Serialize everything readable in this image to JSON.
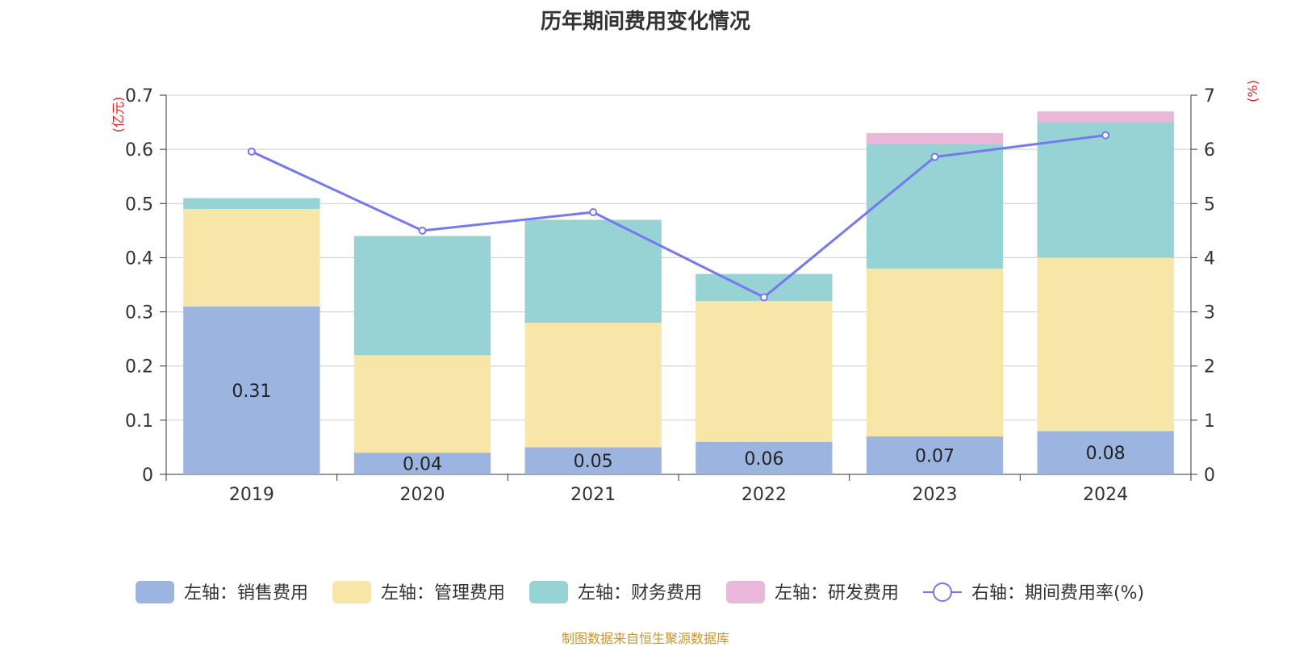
{
  "title": "历年期间费用变化情况",
  "source": "制图数据来自恒生聚源数据库",
  "chart_data": {
    "type": "bar",
    "stacked": true,
    "categories": [
      "2019",
      "2020",
      "2021",
      "2022",
      "2023",
      "2024"
    ],
    "left_axis": {
      "unit_label": "(亿元)",
      "ylim": [
        0,
        0.7
      ],
      "ticks": [
        "0",
        "0.1",
        "0.2",
        "0.3",
        "0.4",
        "0.5",
        "0.6",
        "0.7"
      ]
    },
    "right_axis": {
      "unit_label": "(%)",
      "ylim": [
        0,
        7
      ],
      "ticks": [
        "0",
        "1",
        "2",
        "3",
        "4",
        "5",
        "6",
        "7"
      ]
    },
    "series": [
      {
        "name": "左轴：销售费用",
        "axis": "left",
        "color": "#9bb5e0",
        "values": [
          0.31,
          0.04,
          0.05,
          0.06,
          0.07,
          0.08
        ],
        "show_labels": true
      },
      {
        "name": "左轴：管理费用",
        "axis": "left",
        "color": "#f8e6a8",
        "values": [
          0.18,
          0.18,
          0.23,
          0.26,
          0.31,
          0.32
        ]
      },
      {
        "name": "左轴：财务费用",
        "axis": "left",
        "color": "#97d3d4",
        "values": [
          0.02,
          0.22,
          0.19,
          0.05,
          0.23,
          0.25
        ]
      },
      {
        "name": "左轴：研发费用",
        "axis": "left",
        "color": "#e8b7d9",
        "values": [
          0,
          0,
          0,
          0,
          0.02,
          0.02
        ]
      },
      {
        "name": "右轴：期间费用率(%)",
        "axis": "right",
        "type": "line",
        "color": "#7479ee",
        "values": [
          5.96,
          4.5,
          4.84,
          3.27,
          5.86,
          6.26
        ]
      }
    ],
    "grid": true,
    "legend_position": "bottom"
  }
}
